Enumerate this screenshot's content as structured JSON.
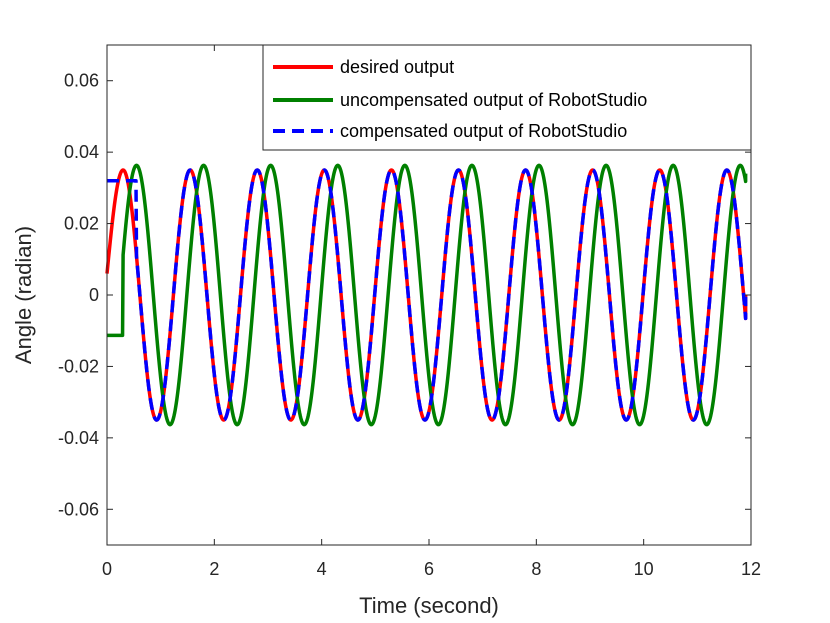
{
  "chart_data": {
    "type": "line",
    "title": "",
    "xlabel": "Time (second)",
    "ylabel": "Angle (radian)",
    "xlim": [
      0,
      12
    ],
    "ylim": [
      -0.07,
      0.07
    ],
    "xticks": [
      0,
      2,
      4,
      6,
      8,
      10,
      12
    ],
    "xtick_labels": [
      "0",
      "2",
      "4",
      "6",
      "8",
      "10",
      "12"
    ],
    "yticks": [
      -0.06,
      -0.04,
      -0.02,
      0,
      0.02,
      0.04,
      0.06
    ],
    "ytick_labels": [
      "-0.06",
      "-0.04",
      "-0.02",
      "0",
      "0.02",
      "0.04",
      "0.06"
    ],
    "grid": false,
    "legend_position": "top-right",
    "series": [
      {
        "name": "desired output",
        "color": "#ff0000",
        "style": "solid",
        "model": {
          "amplitude": 0.035,
          "period": 1.25,
          "phase_peak_time": 0.3,
          "start_value": 0.006,
          "x_end": 11.9,
          "end_value": 0.0
        }
      },
      {
        "name": "uncompensated output of RobotStudio",
        "color": "#008000",
        "style": "solid",
        "model": {
          "amplitude": 0.0363,
          "period": 1.25,
          "phase_peak_time": 0.55,
          "hold_value": -0.0113,
          "hold_until": 0.3,
          "x_end": 11.9,
          "end_value": 0.034
        }
      },
      {
        "name": "compensated output of RobotStudio",
        "color": "#0000ff",
        "style": "dashed",
        "model": {
          "amplitude": 0.035,
          "period": 1.25,
          "phase_peak_time": 0.3,
          "hold_value": 0.032,
          "hold_until": 0.55,
          "x_end": 11.9,
          "end_value": -0.0005
        }
      }
    ]
  }
}
